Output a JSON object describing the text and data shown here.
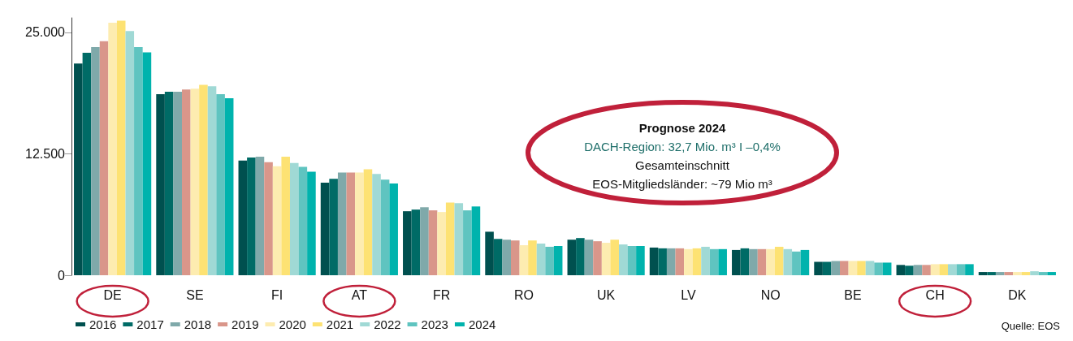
{
  "chart_data": {
    "type": "bar",
    "categories": [
      "DE",
      "SE",
      "FI",
      "AT",
      "FR",
      "RO",
      "UK",
      "LV",
      "NO",
      "BE",
      "CH",
      "DK"
    ],
    "series": [
      {
        "name": "2016",
        "color": "#00504f",
        "values": [
          21800,
          18640,
          11800,
          9520,
          6590,
          4480,
          3660,
          2850,
          2600,
          1380,
          1060,
          330
        ]
      },
      {
        "name": "2017",
        "color": "#006b66",
        "values": [
          22900,
          18900,
          12130,
          9930,
          6760,
          3740,
          3830,
          2770,
          2770,
          1380,
          980,
          330
        ]
      },
      {
        "name": "2018",
        "color": "#7fa9aa",
        "values": [
          23500,
          18900,
          12200,
          10580,
          7000,
          3660,
          3660,
          2770,
          2690,
          1470,
          1060,
          330
        ]
      },
      {
        "name": "2019",
        "color": "#d9968a",
        "values": [
          24100,
          19130,
          11640,
          10580,
          6680,
          3580,
          3500,
          2770,
          2690,
          1470,
          1060,
          330
        ]
      },
      {
        "name": "2020",
        "color": "#fdecb0",
        "values": [
          26000,
          19200,
          11230,
          10580,
          6510,
          3090,
          3340,
          2690,
          2690,
          1470,
          1140,
          330
        ]
      },
      {
        "name": "2021",
        "color": "#fde273",
        "values": [
          26200,
          19600,
          12200,
          10900,
          7490,
          3580,
          3660,
          2770,
          2930,
          1470,
          1140,
          330
        ]
      },
      {
        "name": "2022",
        "color": "#a0d9d5",
        "values": [
          25150,
          19450,
          11560,
          10420,
          7410,
          3260,
          3170,
          2930,
          2690,
          1470,
          1140,
          410
        ]
      },
      {
        "name": "2023",
        "color": "#5fc4c0",
        "values": [
          23500,
          18640,
          11150,
          9850,
          6680,
          2930,
          3010,
          2690,
          2440,
          1300,
          1140,
          330
        ]
      },
      {
        "name": "2024",
        "color": "#00b3ad",
        "values": [
          22950,
          18230,
          10660,
          9440,
          7080,
          3010,
          3010,
          2690,
          2600,
          1300,
          1140,
          330
        ]
      }
    ],
    "ylim": [
      0,
      26500
    ],
    "yticks": [
      {
        "value": 0,
        "label": "0"
      },
      {
        "value": 12500,
        "label": "12.500"
      },
      {
        "value": 25000,
        "label": "25.000"
      }
    ],
    "grid": false,
    "legend": "bottom left",
    "annotations": [
      "Prognose 2024",
      "DACH-Region: 32,7 Mio. m³ I –0,4%",
      "Gesamteinschnitt",
      "EOS-Mitgliedsländer: ~79 Mio m³",
      "Quelle: EOS"
    ]
  }
}
